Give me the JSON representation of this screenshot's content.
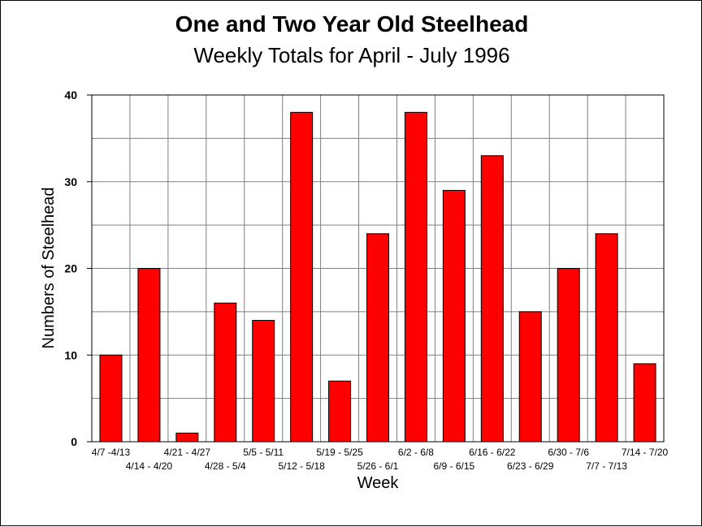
{
  "chart_data": {
    "type": "bar",
    "title": "One and Two Year Old Steelhead",
    "subtitle": "Weekly Totals for April - July 1996",
    "xlabel": "Week",
    "ylabel": "Numbers of Steelhead",
    "categories": [
      "4/7 -4/13",
      "4/14 - 4/20",
      "4/21 - 4/27",
      "4/28 - 5/4",
      "5/5 - 5/11",
      "5/12 - 5/18",
      "5/19 - 5/25",
      "5/26 - 6/1",
      "6/2 - 6/8",
      "6/9 - 6/15",
      "6/16 - 6/22",
      "6/23 - 6/29",
      "6/30 - 7/6",
      "7/7 - 7/13",
      "7/14 - 7/20"
    ],
    "values": [
      10,
      20,
      1,
      16,
      14,
      38,
      7,
      24,
      38,
      29,
      33,
      15,
      20,
      24,
      9
    ],
    "ylim": [
      0,
      40
    ],
    "yticks": [
      0,
      10,
      20,
      30,
      40
    ],
    "grid": true,
    "bar_color": "#ff0000"
  }
}
